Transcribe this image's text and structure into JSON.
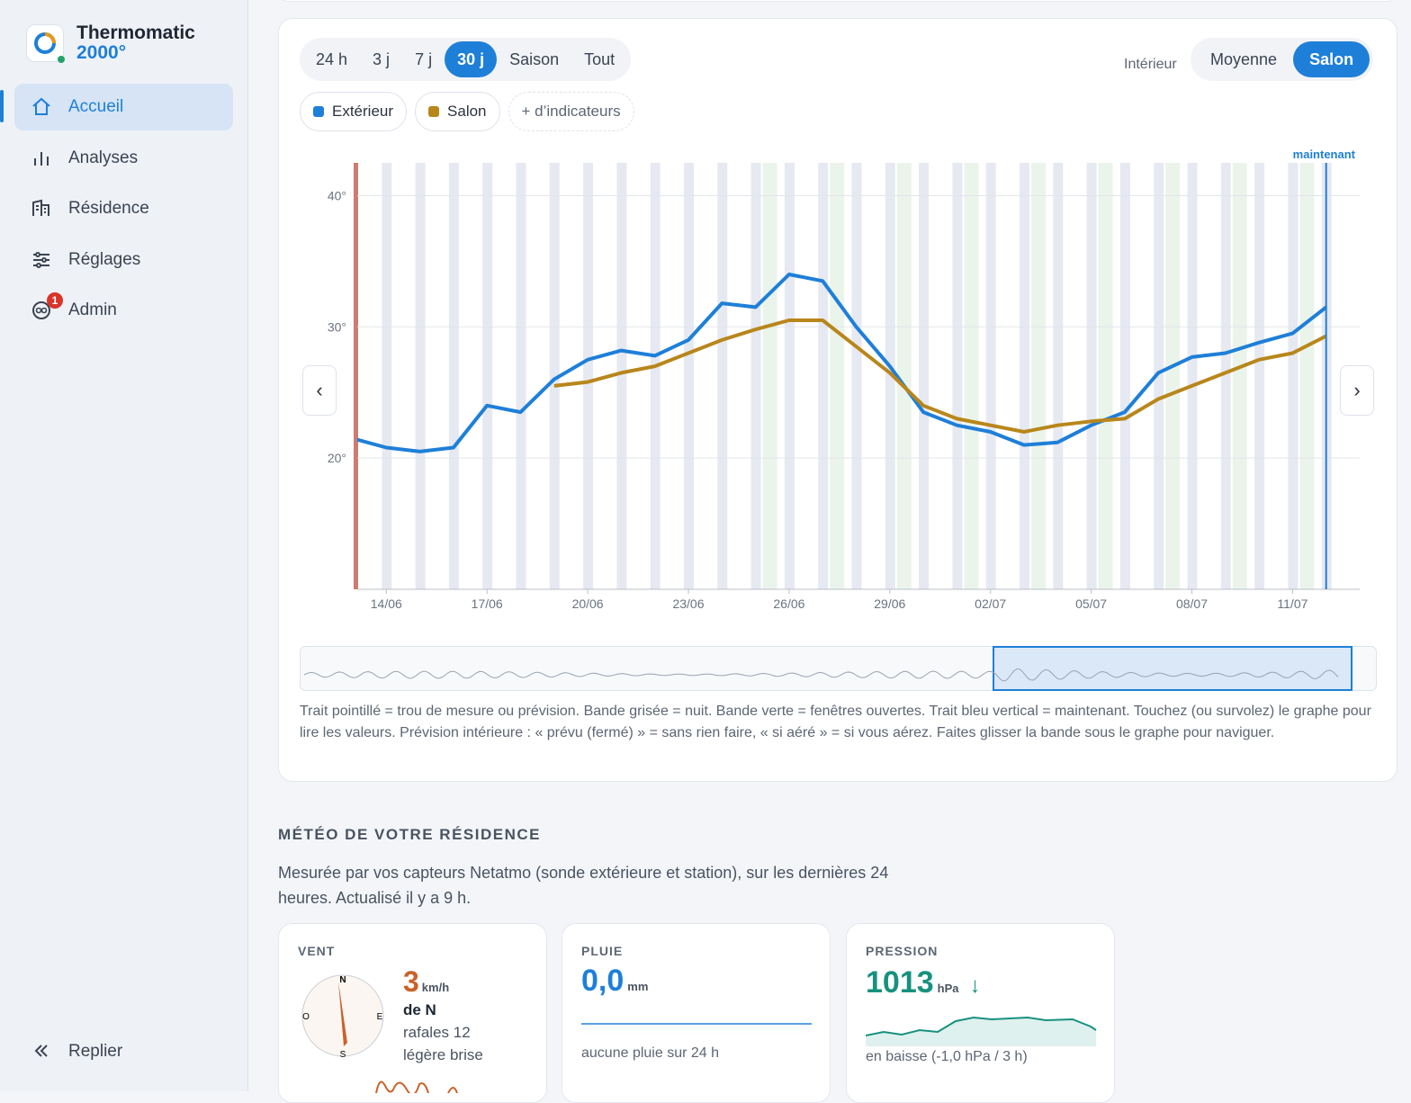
{
  "sidebar": {
    "brand": "Thermomatic",
    "brand_sub": "2000°",
    "nav": [
      "Accueil",
      "Analyses",
      "Résidence",
      "Réglages",
      "Admin"
    ],
    "active_nav": 0,
    "admin_badge": "1",
    "collapse": "Replier"
  },
  "controls": {
    "ranges": [
      "24 h",
      "3 j",
      "7 j",
      "30 j",
      "Saison",
      "Tout"
    ],
    "active_range": 3,
    "interior_label": "Intérieur",
    "interior_modes": [
      "Moyenne",
      "Salon"
    ],
    "active_mode": 1,
    "more_indicators": "+ d’indicateurs",
    "prev": "‹",
    "next": "›"
  },
  "chart_data": {
    "type": "line",
    "now_label": "maintenant",
    "x": [
      "13/06",
      "14/06",
      "15/06",
      "16/06",
      "17/06",
      "18/06",
      "19/06",
      "20/06",
      "21/06",
      "22/06",
      "23/06",
      "24/06",
      "25/06",
      "26/06",
      "27/06",
      "28/06",
      "29/06",
      "30/06",
      "01/07",
      "02/07",
      "03/07",
      "04/07",
      "05/07",
      "06/07",
      "07/07",
      "08/07",
      "09/07",
      "10/07",
      "11/07",
      "12/07"
    ],
    "xticks": [
      "14/06",
      "17/06",
      "20/06",
      "23/06",
      "26/06",
      "29/06",
      "02/07",
      "05/07",
      "08/07",
      "11/07"
    ],
    "now": "12/07",
    "series": [
      {
        "name": "Extérieur",
        "color": "#1e7fd8",
        "values": [
          21.5,
          20.8,
          20.5,
          20.8,
          24,
          23.5,
          26,
          27.5,
          28.2,
          27.8,
          29,
          31.8,
          31.5,
          34,
          33.5,
          30,
          27,
          23.5,
          22.5,
          22,
          21,
          21.2,
          22.5,
          23.5,
          26.5,
          27.7,
          28,
          28.8,
          29.5,
          31.5
        ]
      },
      {
        "name": "Salon",
        "color": "#b8861b",
        "values": [
          null,
          null,
          null,
          null,
          null,
          null,
          25.5,
          25.8,
          26.5,
          27,
          28,
          29,
          29.8,
          30.5,
          30.5,
          28.5,
          26.5,
          24,
          23,
          22.5,
          22,
          22.5,
          22.8,
          23,
          24.5,
          25.5,
          26.5,
          27.5,
          28,
          29.3
        ]
      }
    ],
    "ylim": [
      10,
      42.5
    ],
    "yticks": [
      {
        "value": 20,
        "label": "20°"
      },
      {
        "value": 30,
        "label": "30°"
      },
      {
        "value": 40,
        "label": "40°"
      }
    ],
    "grid": true
  },
  "caption": "Trait pointillé = trou de mesure ou prévision. Bande grisée = nuit. Bande verte = fenêtres ouvertes. Trait bleu vertical = maintenant. Touchez (ou survolez) le graphe pour lire les valeurs. Prévision intérieure : « prévu (fermé) » = sans rien faire, « si aéré » = si vous aérez. Faites glisser la bande sous le graphe pour naviguer.",
  "weather": {
    "title": "MÉTÉO DE VOTRE RÉSIDENCE",
    "description": "Mesurée par vos capteurs Netatmo (sonde extérieure et station), sur les dernières 24 heures. Actualisé il y a 9 h.",
    "wind": {
      "label": "VENT",
      "value": "3",
      "unit": "km/h",
      "direction": "de N",
      "gusts": "rafales 12",
      "description": "légère brise",
      "compass": [
        "N",
        "E",
        "S",
        "O"
      ]
    },
    "rain": {
      "label": "PLUIE",
      "value": "0,0",
      "unit": "mm",
      "note": "aucune pluie sur 24 h"
    },
    "pressure": {
      "label": "PRESSION",
      "value": "1013",
      "unit": "hPa",
      "trend": "↓",
      "note": "en baisse (-1,0 hPa / 3 h)"
    }
  }
}
